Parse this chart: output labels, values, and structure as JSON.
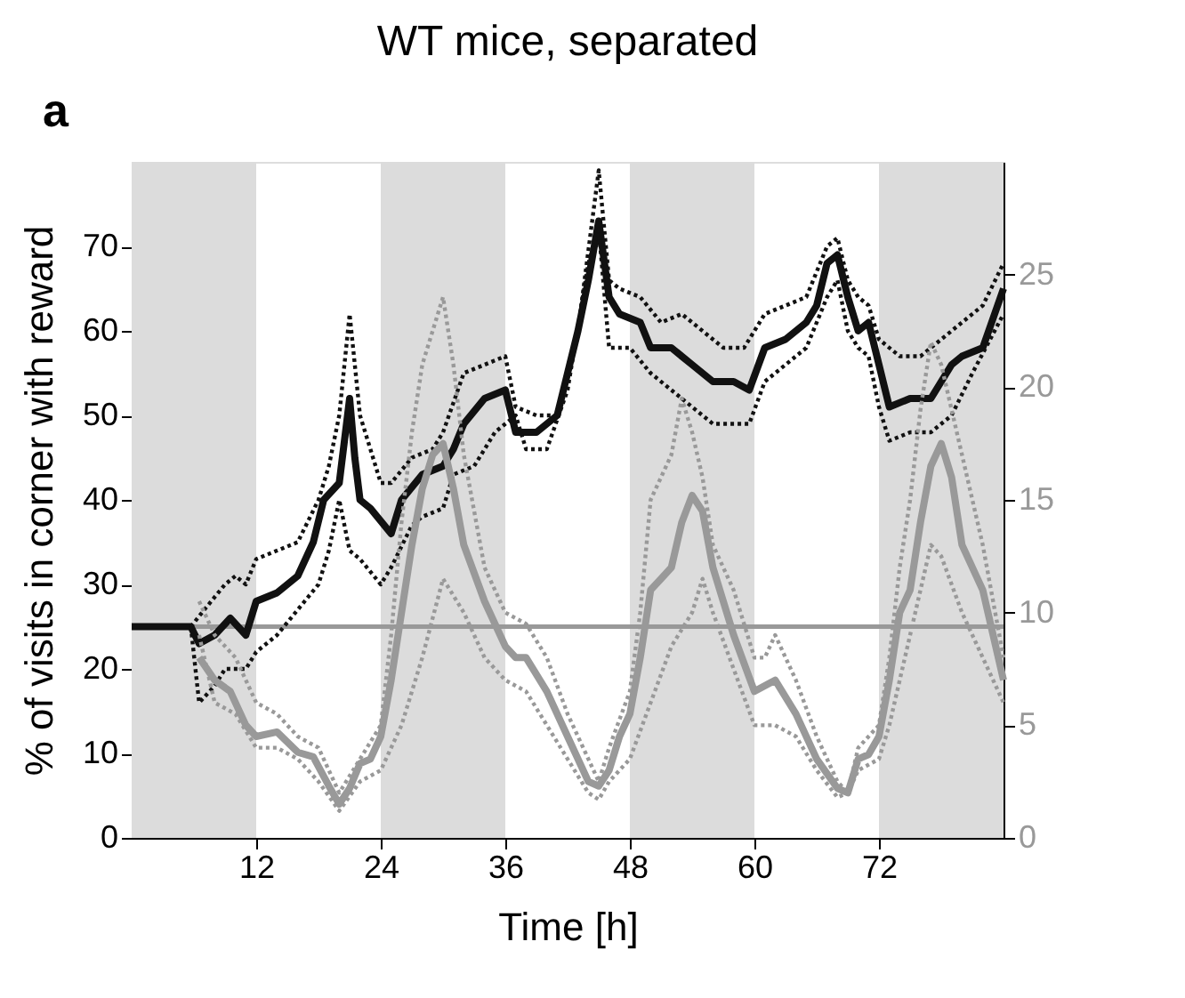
{
  "chart_data": {
    "type": "line",
    "title": "WT mice, separated",
    "xlabel": "Time [h]",
    "ylabel": "% of visits in corner with reward",
    "annotations": [
      "a"
    ],
    "xlim": [
      0,
      84
    ],
    "xticks": [
      12,
      24,
      36,
      48,
      60,
      72
    ],
    "ylim": [
      0,
      80
    ],
    "yticks": [
      0,
      10,
      20,
      30,
      40,
      50,
      60,
      70
    ],
    "y2lim": [
      0,
      30
    ],
    "y2ticks": [
      0,
      5,
      10,
      15,
      20,
      25
    ],
    "grid": false,
    "marker": "none",
    "bands": [
      {
        "axis": "x",
        "from": 0,
        "to": 12,
        "color": "#dcdcdc"
      },
      {
        "axis": "x",
        "from": 24,
        "to": 36,
        "color": "#dcdcdc"
      },
      {
        "axis": "x",
        "from": 48,
        "to": 60,
        "color": "#dcdcdc"
      },
      {
        "axis": "x",
        "from": 72,
        "to": 84,
        "color": "#dcdcdc"
      }
    ],
    "ref_lines": [
      {
        "axis": "y",
        "value": 25,
        "color": "#999999",
        "line_style": "solid"
      }
    ],
    "series": [
      {
        "color": "#111111",
        "line_style": "solid",
        "axis": "y",
        "x": [
          0,
          5.7,
          6.5,
          8,
          9.5,
          11,
          12,
          14,
          16,
          17.5,
          18.5,
          20,
          21,
          21.5,
          22,
          23,
          25,
          26,
          28,
          30,
          31,
          32,
          34,
          36,
          37,
          39,
          41,
          42,
          43,
          44,
          45,
          46,
          47,
          49,
          50,
          52,
          54,
          56,
          58,
          59.5,
          61,
          63,
          65,
          66,
          67,
          68,
          69,
          70,
          71,
          72,
          73,
          75,
          77,
          78,
          79,
          80,
          82,
          84
        ],
        "values": [
          25,
          25,
          23,
          24,
          26,
          24,
          28,
          29,
          31,
          35,
          40,
          42,
          52,
          45,
          40,
          39,
          36,
          40,
          43,
          44,
          46,
          49,
          52,
          53,
          48,
          48,
          50,
          55,
          60,
          66,
          73,
          64,
          62,
          61,
          58,
          58,
          56,
          54,
          54,
          53,
          58,
          59,
          61,
          63,
          68,
          69,
          64,
          60,
          61,
          56,
          51,
          52,
          52,
          54,
          56,
          57,
          58,
          65
        ]
      },
      {
        "color": "#111111",
        "line_style": "dotted",
        "axis": "y",
        "x": [
          5.7,
          7,
          9,
          10,
          11,
          12,
          14,
          16,
          18,
          19,
          20,
          21,
          22,
          23,
          24,
          25,
          27,
          29,
          30,
          32,
          34,
          36,
          37,
          39,
          41,
          43,
          45,
          46,
          47,
          49,
          51,
          53,
          55,
          57,
          59,
          61,
          63,
          65,
          67,
          68,
          69,
          70,
          71,
          72,
          74,
          76,
          78,
          80,
          82,
          84
        ],
        "values": [
          25,
          27,
          30,
          31,
          30,
          33,
          34,
          35,
          40,
          44,
          50,
          62,
          50,
          46,
          42,
          42,
          45,
          46,
          48,
          55,
          56,
          57,
          51,
          50,
          50,
          60,
          79,
          66,
          65,
          64,
          61,
          62,
          60,
          58,
          58,
          62,
          63,
          64,
          70,
          71,
          66,
          64,
          63,
          59,
          57,
          57,
          59,
          61,
          63,
          68
        ]
      },
      {
        "color": "#111111",
        "line_style": "dotted",
        "axis": "y",
        "x": [
          5.7,
          6.5,
          8,
          9,
          11,
          12,
          14,
          16,
          18,
          19,
          20,
          21,
          22,
          24,
          25,
          27,
          28,
          30,
          31,
          33,
          35,
          37,
          38,
          40,
          42,
          44,
          45,
          46,
          48,
          50,
          52,
          54,
          56,
          58,
          59.5,
          61,
          63,
          65,
          67,
          68,
          69,
          70,
          71,
          72,
          73,
          75,
          77,
          79,
          81,
          84
        ],
        "values": [
          25,
          16,
          18,
          20,
          20,
          22,
          24,
          27,
          30,
          34,
          40,
          34,
          33,
          30,
          32,
          37,
          38,
          39,
          43,
          44,
          48,
          50,
          46,
          46,
          53,
          68,
          72,
          58,
          58,
          55,
          53,
          51,
          49,
          49,
          49,
          54,
          56,
          58,
          64,
          66,
          60,
          58,
          57,
          51,
          47,
          48,
          48,
          50,
          55,
          62
        ]
      },
      {
        "color": "#999999",
        "line_style": "solid",
        "axis": "y2",
        "x": [
          6.5,
          8,
          9.5,
          11,
          12,
          14,
          16,
          17.5,
          19,
          20,
          21,
          22,
          23,
          24,
          25,
          26,
          27,
          28,
          29,
          30,
          31,
          32,
          34,
          36,
          37,
          38,
          40,
          42,
          44,
          45,
          46,
          47,
          48,
          49,
          50,
          51,
          52,
          53,
          54,
          55,
          56,
          57,
          58,
          60,
          62,
          64,
          66,
          68,
          69,
          70,
          71,
          72,
          73,
          74,
          75,
          76,
          77,
          78,
          79,
          80,
          82,
          83,
          84
        ],
        "values": [
          8,
          7,
          6.5,
          5,
          4.5,
          4.7,
          3.8,
          3.6,
          2.3,
          1.5,
          2.2,
          3.3,
          3.5,
          4.5,
          7,
          10,
          13,
          15.5,
          17,
          17.5,
          15.5,
          13,
          10.5,
          8.5,
          8,
          8,
          6.5,
          4.5,
          2.5,
          2.3,
          3,
          4.5,
          5.5,
          8,
          11,
          11.5,
          12,
          14,
          15.2,
          14.5,
          12,
          10.5,
          9,
          6.5,
          7,
          5.5,
          3.5,
          2.2,
          2,
          3.5,
          3.7,
          4.5,
          7,
          10,
          11,
          14,
          16.5,
          17.5,
          16,
          13,
          11,
          9,
          7
        ]
      },
      {
        "color": "#999999",
        "line_style": "dotted",
        "axis": "y2",
        "x": [
          6.5,
          8,
          10,
          12,
          14,
          16,
          18,
          20,
          22,
          24,
          25,
          26,
          27,
          28,
          30,
          31,
          32,
          34,
          36,
          38,
          40,
          42,
          44,
          45,
          46,
          48,
          49,
          50,
          51,
          52,
          53,
          54,
          55,
          56,
          58,
          60,
          61,
          62,
          64,
          66,
          68,
          69,
          70,
          72,
          73,
          74,
          75,
          76,
          77,
          78,
          80,
          82,
          84
        ],
        "values": [
          10.5,
          9,
          8,
          6,
          5.5,
          4.5,
          4,
          2,
          3.5,
          5,
          9,
          14,
          18,
          21,
          24,
          21,
          17,
          12,
          10,
          9.5,
          8,
          5.5,
          3.5,
          2.5,
          4,
          6.5,
          10,
          15,
          16,
          17,
          19.5,
          18,
          16,
          13,
          11,
          8,
          8,
          9,
          7,
          4.5,
          2.5,
          2,
          4,
          5,
          8,
          12,
          15,
          19,
          22,
          21,
          17,
          13,
          8
        ]
      },
      {
        "color": "#999999",
        "line_style": "dotted",
        "axis": "y2",
        "x": [
          6.5,
          8,
          10,
          12,
          14,
          16,
          18,
          20,
          22,
          24,
          26,
          28,
          30,
          32,
          34,
          36,
          38,
          40,
          42,
          44,
          45,
          46,
          48,
          50,
          52,
          54,
          55,
          56,
          58,
          60,
          62,
          64,
          66,
          68,
          69,
          70,
          72,
          73,
          74,
          76,
          77,
          78,
          80,
          82,
          84
        ],
        "values": [
          9,
          6,
          5.5,
          4,
          4,
          3.5,
          2.5,
          1.2,
          2.5,
          3,
          5,
          8,
          11.5,
          10,
          8,
          7,
          6.5,
          5,
          3.5,
          2,
          1.7,
          2.5,
          3.5,
          6,
          8.5,
          10,
          11.5,
          10,
          7.5,
          5,
          5,
          4.5,
          3,
          1.8,
          2,
          3,
          3.5,
          5,
          7,
          11,
          13,
          12.5,
          10,
          8,
          6
        ]
      }
    ]
  }
}
